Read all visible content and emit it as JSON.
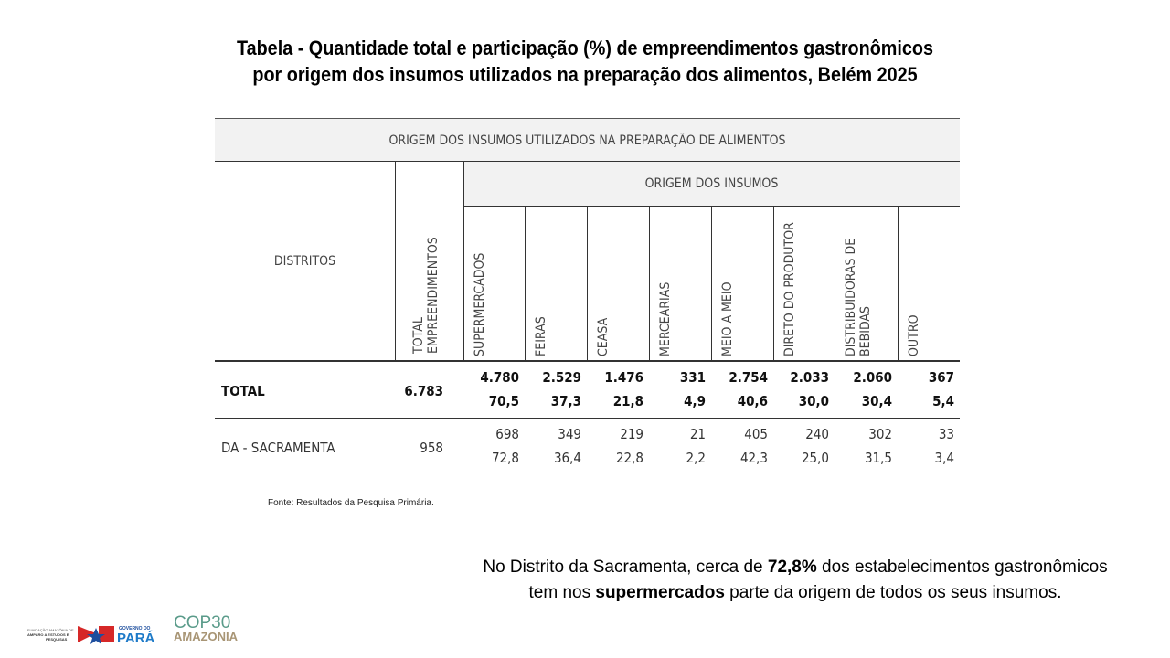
{
  "title": {
    "line1": "Tabela - Quantidade total e participação (%) de empreendimentos gastronômicos",
    "line2": "por origem dos insumos utilizados na preparação dos alimentos, Belém 2025"
  },
  "table": {
    "caption": "ORIGEM DOS INSUMOS UTILIZADOS NA PREPARAÇÃO DE ALIMENTOS",
    "group_header": "ORIGEM DOS INSUMOS",
    "col_distritos": "DISTRITOS",
    "col_total": "TOTAL EMPREENDIMENTOS",
    "columns": [
      "SUPERMERCADOS",
      "FEIRAS",
      "CEASA",
      "MERCEARIAS",
      "MEIO A MEIO",
      "DIRETO DO PRODUTOR",
      "DISTRIBUIDORAS DE BEBIDAS",
      "OUTRO"
    ],
    "rows": [
      {
        "distrito": "TOTAL",
        "total": "6.783",
        "qtd": [
          "4.780",
          "2.529",
          "1.476",
          "331",
          "2.754",
          "2.033",
          "2.060",
          "367"
        ],
        "pct": [
          "70,5",
          "37,3",
          "21,8",
          "4,9",
          "40,6",
          "30,0",
          "30,4",
          "5,4"
        ]
      },
      {
        "distrito": "DA - SACRAMENTA",
        "total": "958",
        "qtd": [
          "698",
          "349",
          "219",
          "21",
          "405",
          "240",
          "302",
          "33"
        ],
        "pct": [
          "72,8",
          "36,4",
          "22,8",
          "2,2",
          "42,3",
          "25,0",
          "31,5",
          "3,4"
        ]
      }
    ]
  },
  "source": "Fonte: Resultados da Pesquisa Primária.",
  "note": {
    "p1": "No Distrito da Sacramenta, cerca de ",
    "b1": "72,8%",
    "p2": " dos estabelecimentos gastronômicos",
    "p3": "tem nos ",
    "b2": "supermercados",
    "p4": " parte da origem de todos os seus insumos."
  },
  "logos": {
    "fapespa": "FUNDAÇÃO AMAZÔNIA DE AMPARO A ESTUDOS E PESQUISAS",
    "gov": "GOVERNO DO PARÁ",
    "cop": "COP30 AMAZÔNIA"
  }
}
